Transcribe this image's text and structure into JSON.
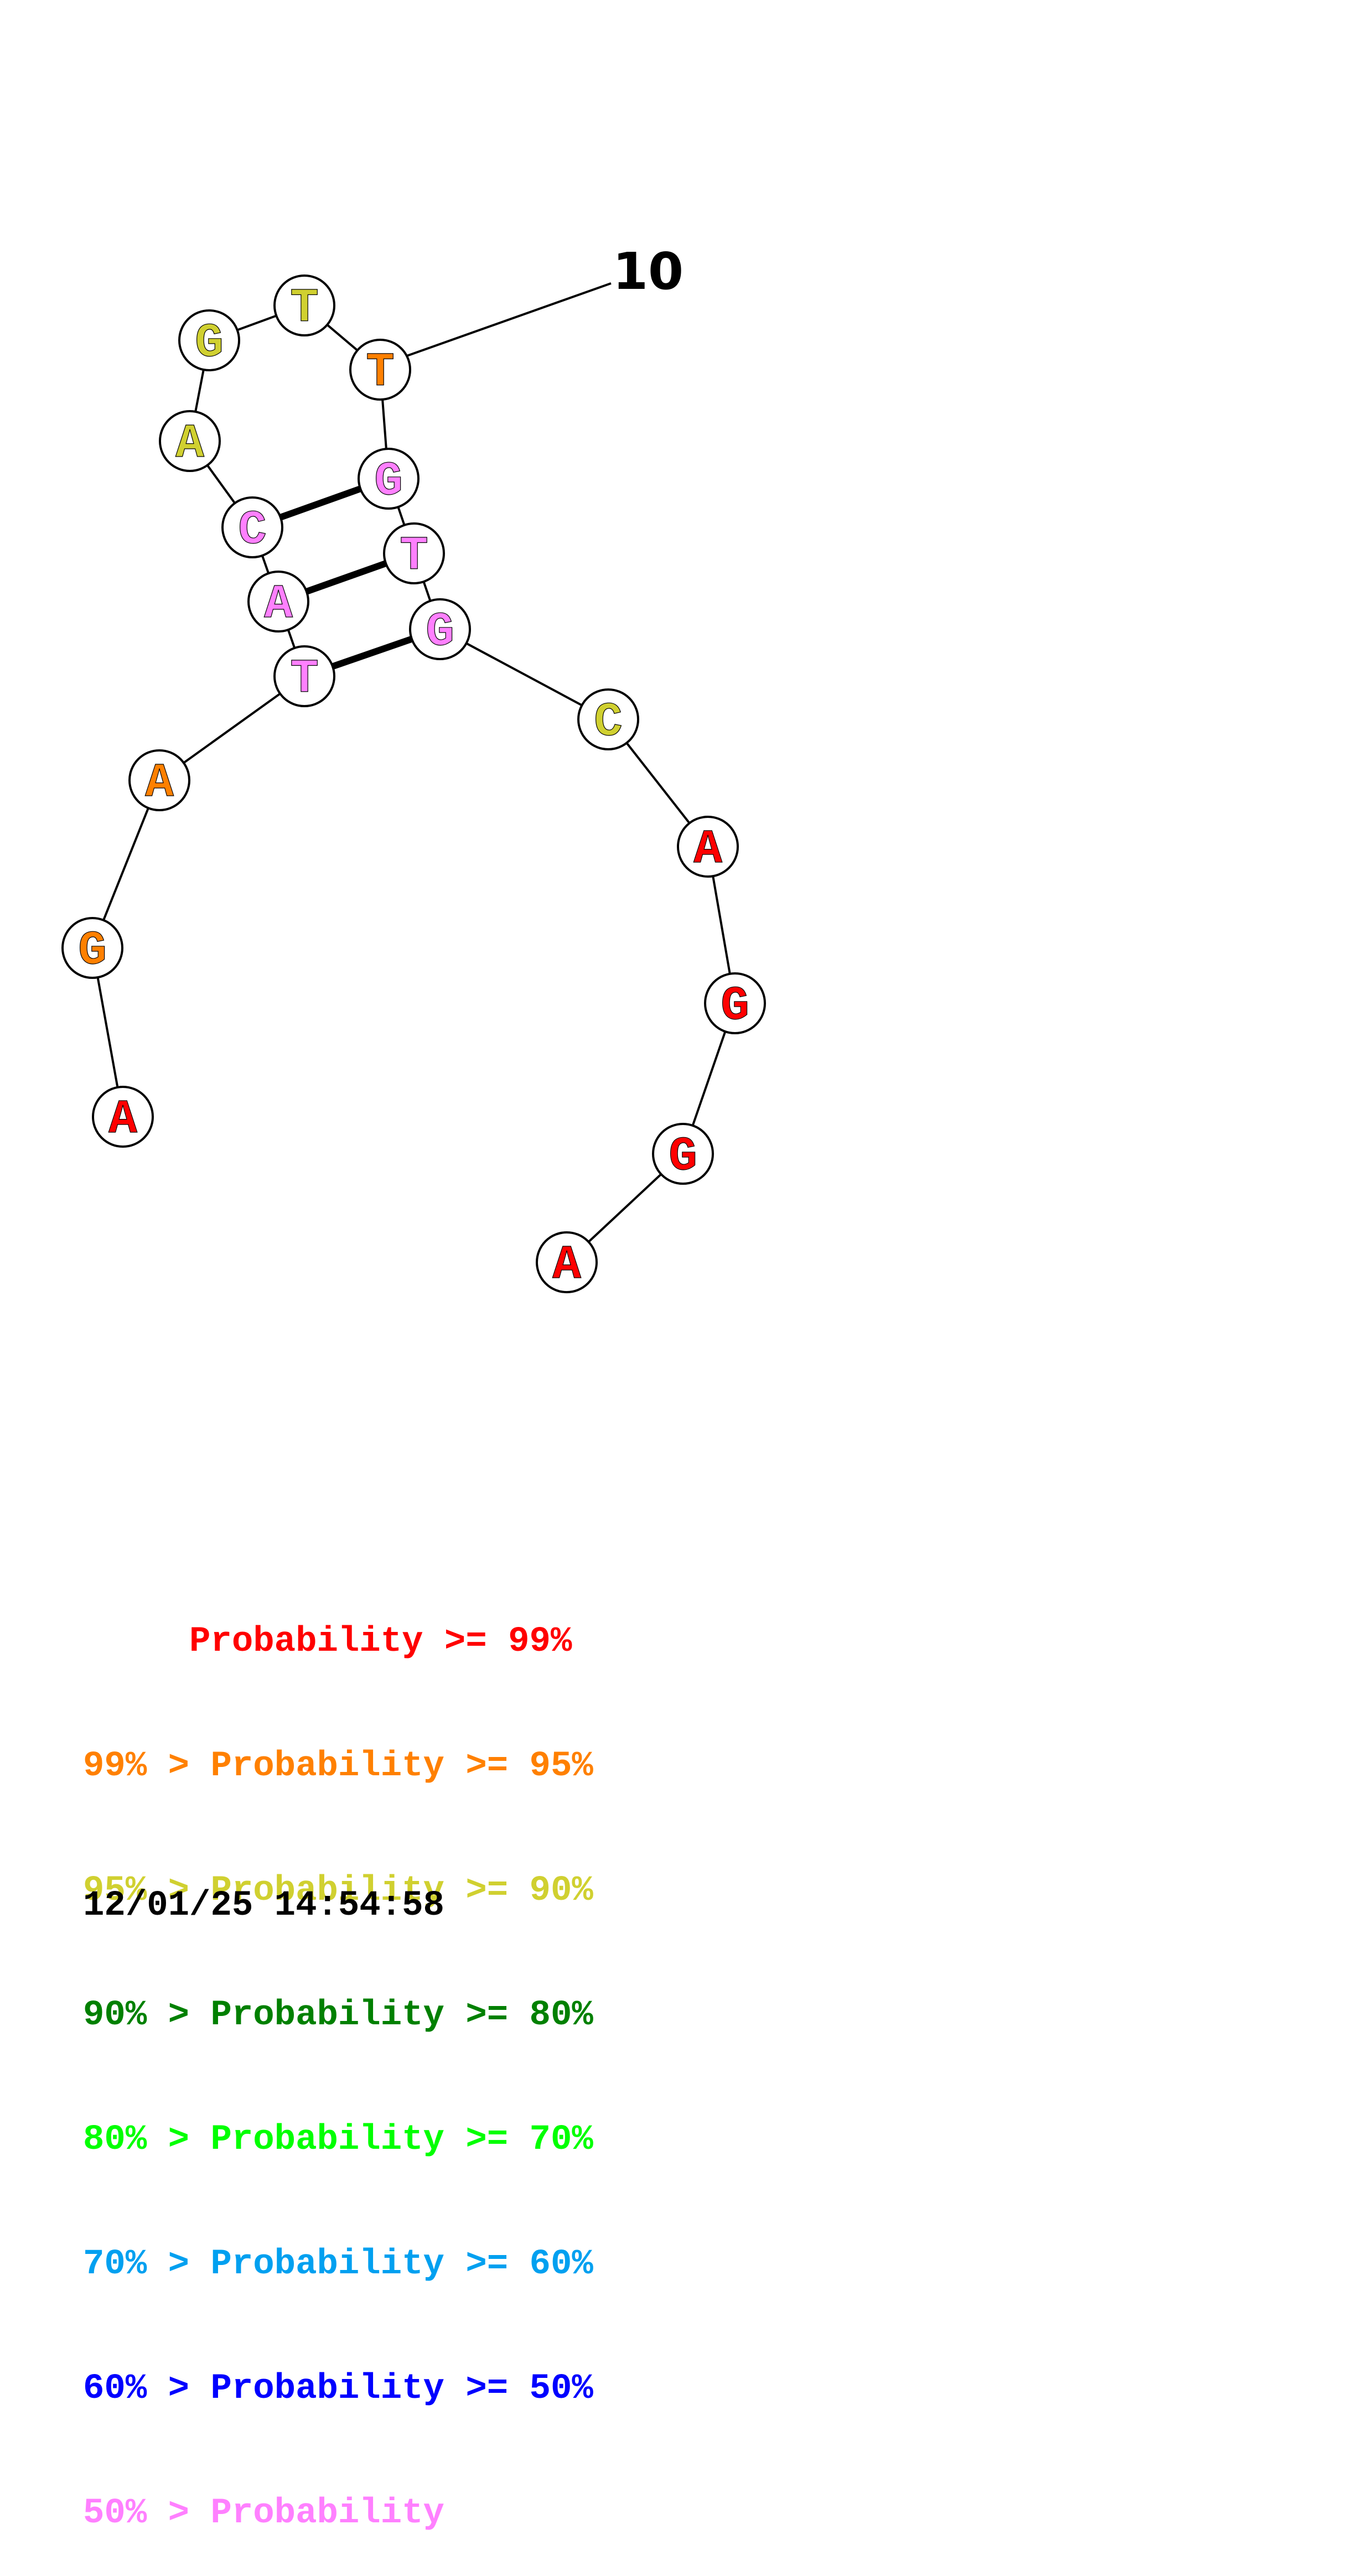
{
  "colors": {
    "p99": "#ff0000",
    "p95": "#ff8000",
    "p90": "#d0d030",
    "p80": "#008000",
    "p70": "#00ff00",
    "p60": "#00a0f0",
    "p50": "#0000ff",
    "plow": "#ff80ff"
  },
  "nucleotides": [
    {
      "base": "A",
      "prob": "p99"
    },
    {
      "base": "G",
      "prob": "p95"
    },
    {
      "base": "A",
      "prob": "p95"
    },
    {
      "base": "T",
      "prob": "plow"
    },
    {
      "base": "A",
      "prob": "plow"
    },
    {
      "base": "C",
      "prob": "plow"
    },
    {
      "base": "A",
      "prob": "p90"
    },
    {
      "base": "G",
      "prob": "p90"
    },
    {
      "base": "T",
      "prob": "p90"
    },
    {
      "base": "T",
      "prob": "p95"
    },
    {
      "base": "G",
      "prob": "plow"
    },
    {
      "base": "T",
      "prob": "plow"
    },
    {
      "base": "G",
      "prob": "plow"
    },
    {
      "base": "C",
      "prob": "p90"
    },
    {
      "base": "A",
      "prob": "p99"
    },
    {
      "base": "G",
      "prob": "p99"
    },
    {
      "base": "G",
      "prob": "p99"
    },
    {
      "base": "A",
      "prob": "p99"
    }
  ],
  "pairs": [
    [
      3,
      12
    ],
    [
      4,
      11
    ],
    [
      5,
      10
    ]
  ],
  "position_label": "10",
  "legend": [
    {
      "text": "     Probability >= 99%",
      "color": "#ff0000"
    },
    {
      "text": "99% > Probability >= 95%",
      "color": "#ff8000"
    },
    {
      "text": "95% > Probability >= 90%",
      "color": "#d0d030"
    },
    {
      "text": "90% > Probability >= 80%",
      "color": "#008000"
    },
    {
      "text": "80% > Probability >= 70%",
      "color": "#00ff00"
    },
    {
      "text": "70% > Probability >= 60%",
      "color": "#00a0f0"
    },
    {
      "text": "60% > Probability >= 50%",
      "color": "#0000ff"
    },
    {
      "text": "50% > Probability",
      "color": "#ff80ff"
    }
  ],
  "timestamp": "12/01/25 14:54:58"
}
